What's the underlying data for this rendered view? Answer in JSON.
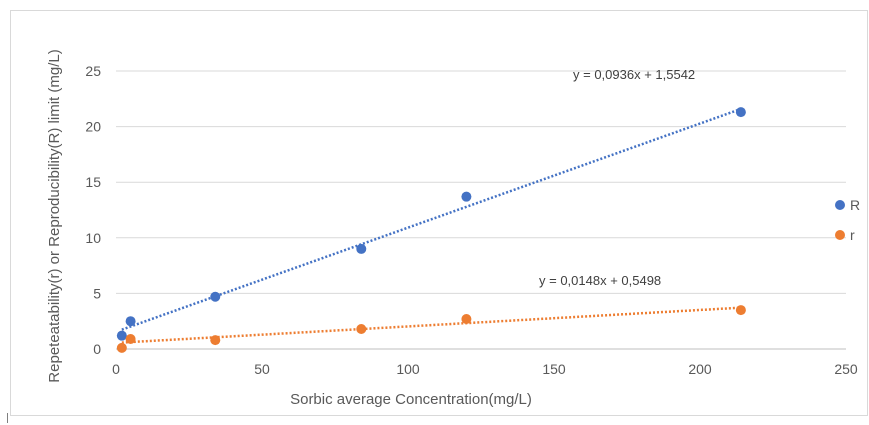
{
  "chart_data": {
    "type": "scatter",
    "title": "",
    "xlabel": "Sorbic average Concentration(mg/L)",
    "ylabel": "Repeteatability(r) or Reproducibility(R) limit (mg/L)",
    "xlim": [
      0,
      250
    ],
    "ylim": [
      0,
      25
    ],
    "x_ticks": [
      0,
      50,
      100,
      150,
      200,
      250
    ],
    "y_ticks": [
      0,
      5,
      10,
      15,
      20,
      25
    ],
    "grid": "horizontal",
    "legend_position": "right",
    "series": [
      {
        "name": "R",
        "color": "#4472c4",
        "points": [
          [
            2,
            1.2
          ],
          [
            5,
            2.5
          ],
          [
            34,
            4.7
          ],
          [
            84,
            9.0
          ],
          [
            120,
            13.7
          ],
          [
            214,
            21.3
          ]
        ],
        "trendline": {
          "slope": 0.0936,
          "intercept": 1.5542,
          "x_range": [
            2,
            214
          ]
        },
        "equation": "y = 0,0936x + 1,5542"
      },
      {
        "name": "r",
        "color": "#ed7d31",
        "points": [
          [
            2,
            0.1
          ],
          [
            5,
            0.9
          ],
          [
            34,
            0.8
          ],
          [
            84,
            1.8
          ],
          [
            120,
            2.7
          ],
          [
            214,
            3.5
          ]
        ],
        "trendline": {
          "slope": 0.0148,
          "intercept": 0.5498,
          "x_range": [
            2,
            214
          ]
        },
        "equation": "y = 0,0148x + 0,5498"
      }
    ]
  }
}
